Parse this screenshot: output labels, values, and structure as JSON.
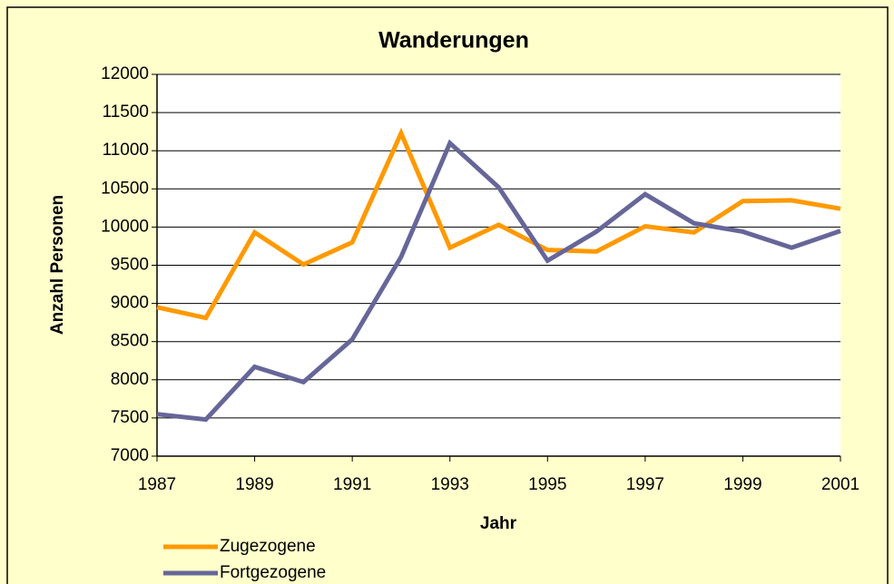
{
  "chart_data": {
    "type": "line",
    "title": "Wanderungen",
    "x_label": "Jahr",
    "y_label": "Anzahl Personen",
    "x": [
      1987,
      1988,
      1989,
      1990,
      1991,
      1992,
      1993,
      1994,
      1995,
      1996,
      1997,
      1998,
      1999,
      2000,
      2001
    ],
    "series": [
      {
        "name": "Zugezogene",
        "color": "#ff9900",
        "values": [
          8950,
          8810,
          9930,
          9510,
          9800,
          11230,
          9730,
          10030,
          9700,
          9680,
          10010,
          9930,
          10340,
          10350,
          10240
        ]
      },
      {
        "name": "Fortgezogene",
        "color": "#666699",
        "values": [
          7550,
          7480,
          8170,
          7970,
          8530,
          9610,
          11100,
          10520,
          9560,
          9940,
          10430,
          10050,
          9940,
          9730,
          9950
        ]
      }
    ],
    "xlim": [
      1987,
      2001
    ],
    "xticks": [
      1987,
      1989,
      1991,
      1993,
      1995,
      1997,
      1999,
      2001
    ],
    "ylim": [
      7000,
      12000
    ],
    "yticks": [
      7000,
      7500,
      8000,
      8500,
      9000,
      9500,
      10000,
      10500,
      11000,
      11500,
      12000
    ],
    "grid": true
  }
}
